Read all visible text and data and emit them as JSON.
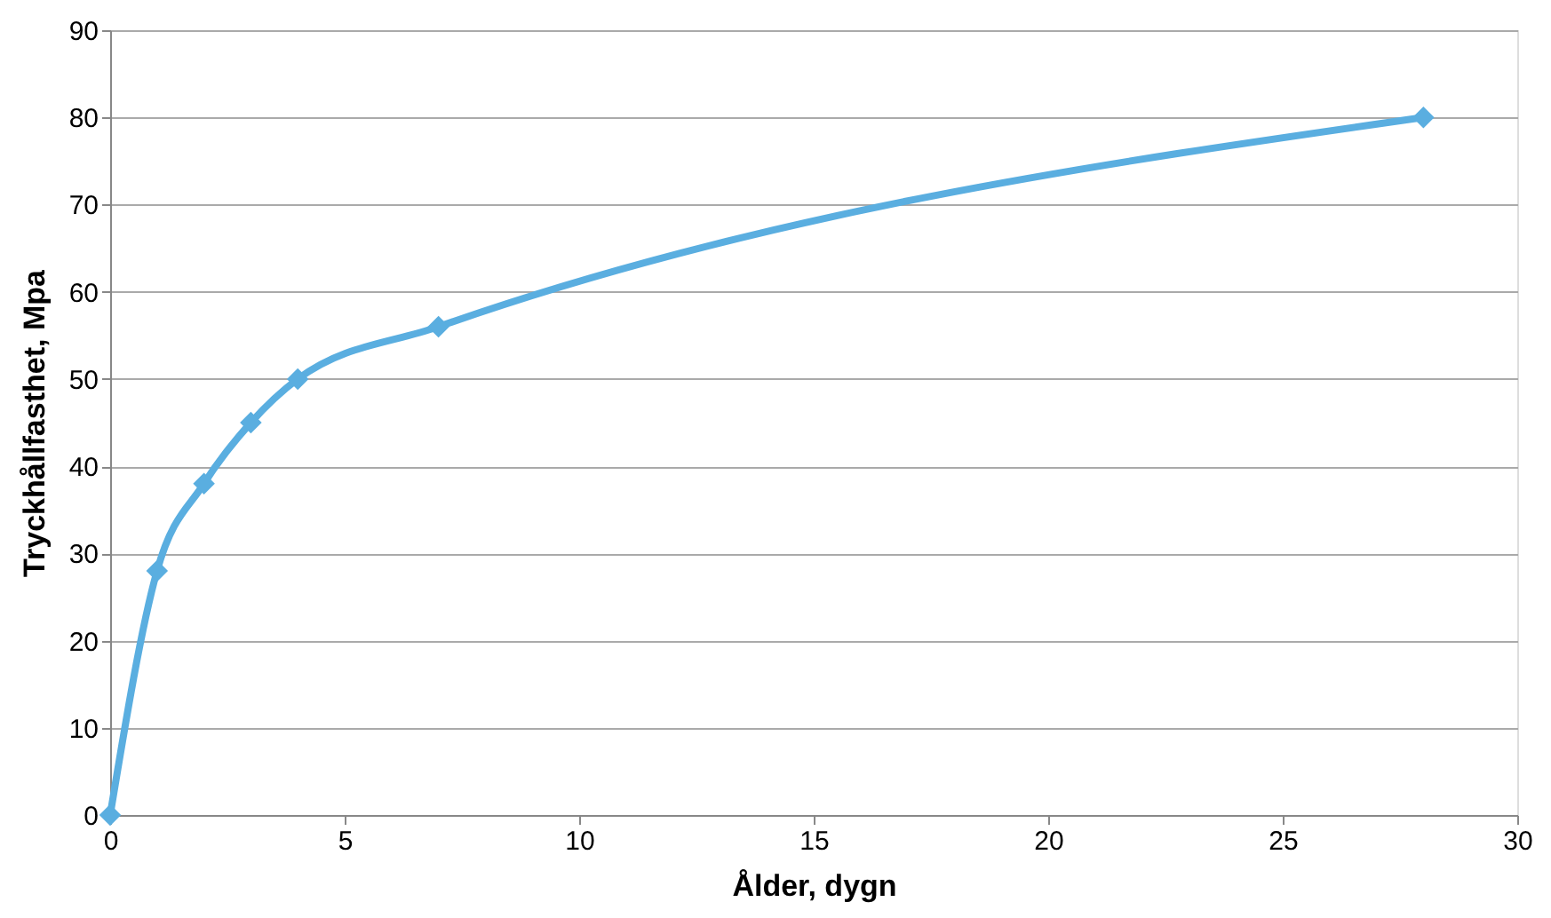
{
  "chart_data": {
    "type": "line",
    "xlabel": "Ålder, dygn",
    "ylabel": "Tryckhållfasthet, Mpa",
    "x": [
      0,
      1,
      2,
      3,
      4,
      7,
      28
    ],
    "series": [
      {
        "color": "#5aaee0",
        "values": [
          0,
          28,
          38,
          45,
          50,
          56,
          80
        ]
      }
    ],
    "xlim": [
      0,
      30
    ],
    "xticks": [
      0,
      5,
      10,
      15,
      20,
      25,
      30
    ],
    "ylim": [
      0,
      90
    ],
    "yticks": [
      0,
      10,
      20,
      30,
      40,
      50,
      60,
      70,
      80,
      90
    ],
    "grid": "y",
    "marker": "diamond",
    "line_style": "solid"
  }
}
